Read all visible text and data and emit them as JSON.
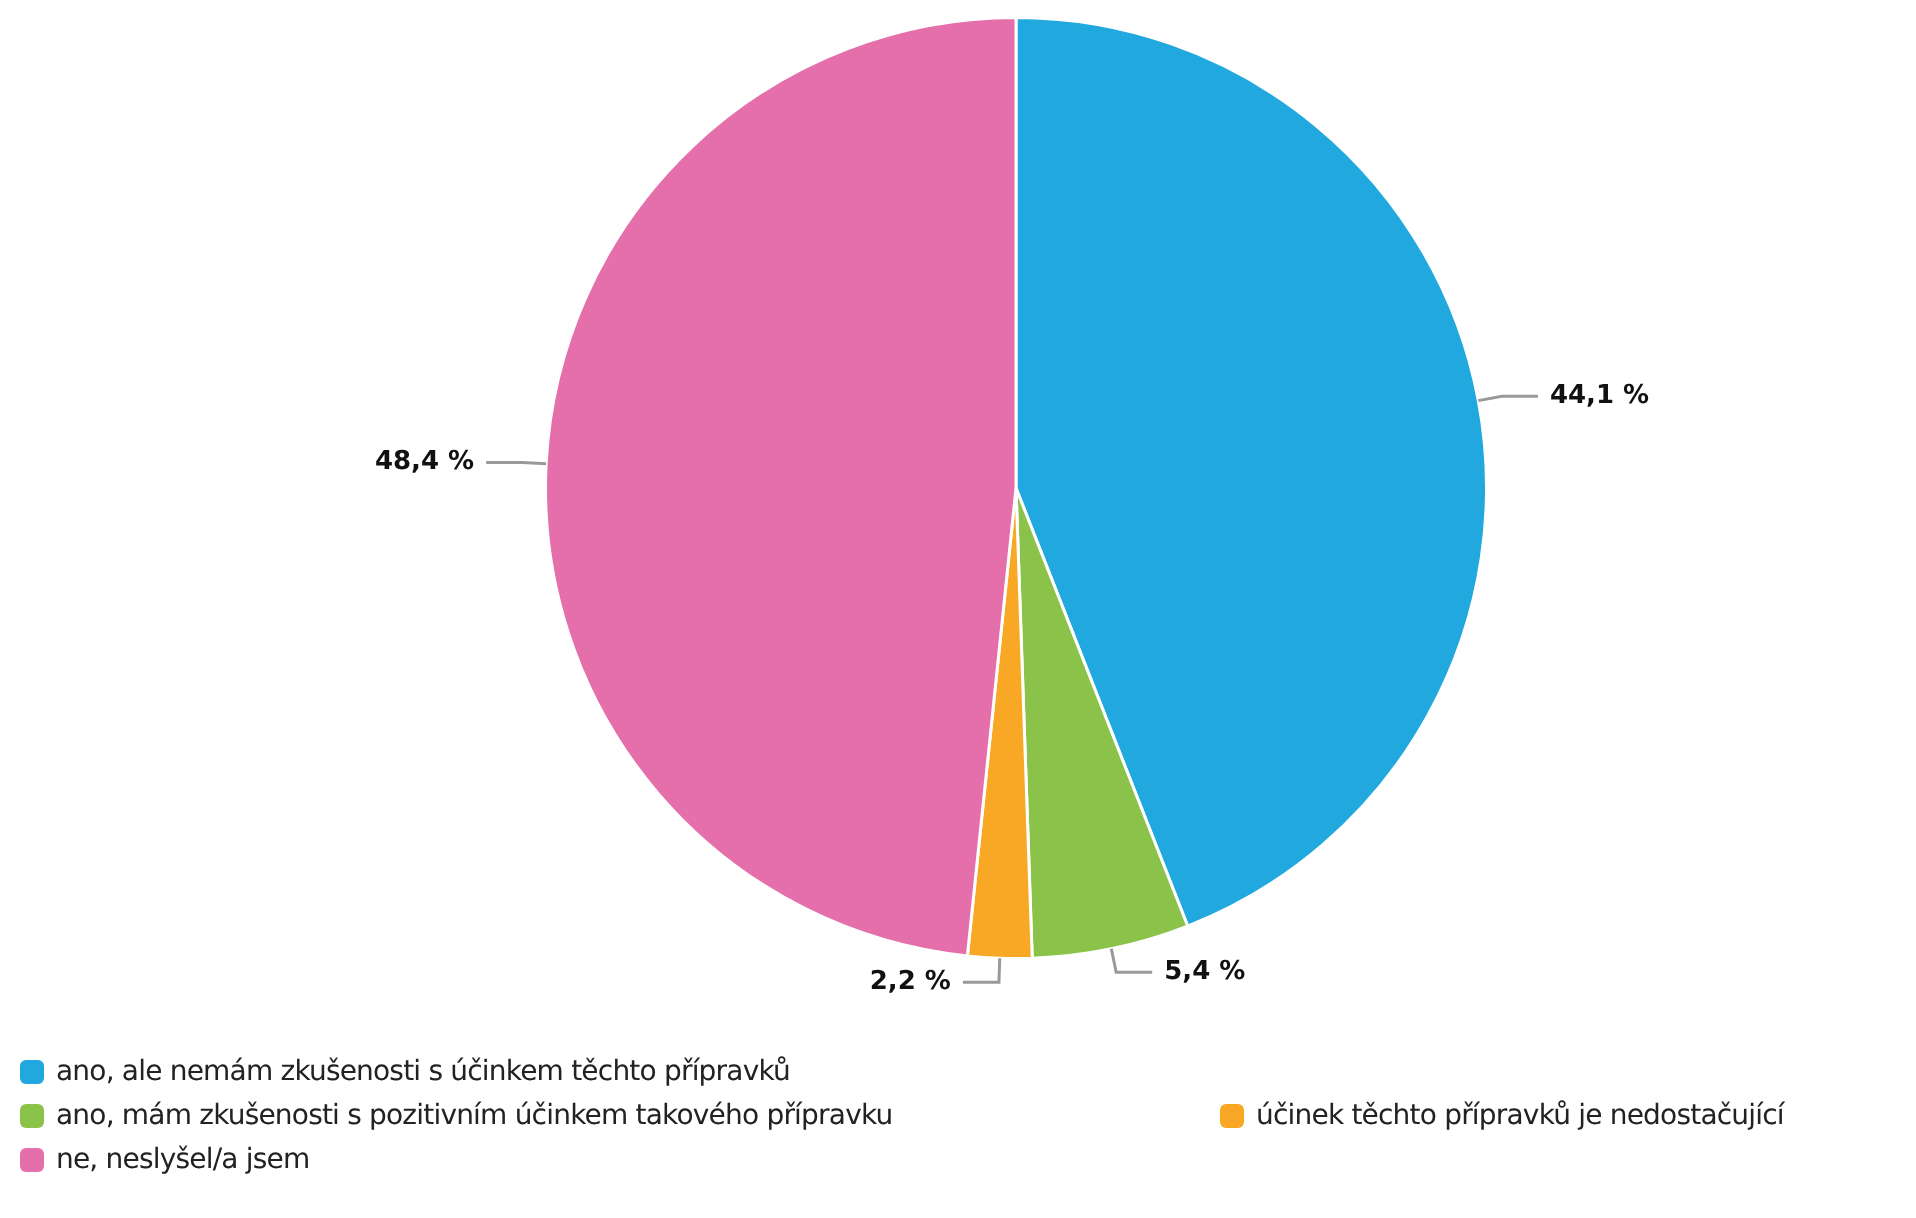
{
  "chart_data": {
    "type": "pie",
    "categories": [
      "ano, ale nemám zkušenosti s účinkem těchto přípravků",
      "ano, mám zkušenosti s pozitivním účinkem takového přípravku",
      "účinek těchto přípravků je nedostačující",
      "ne, neslyšel/a jsem"
    ],
    "values": [
      44.1,
      5.4,
      2.2,
      48.4
    ],
    "colors": [
      "#20a8df",
      "#8bc34a",
      "#f9a825",
      "#e56fab"
    ],
    "value_labels": [
      "44,1 %",
      "5,4 %",
      "2,2 %",
      "48,4 %"
    ],
    "legend": "bottom"
  }
}
